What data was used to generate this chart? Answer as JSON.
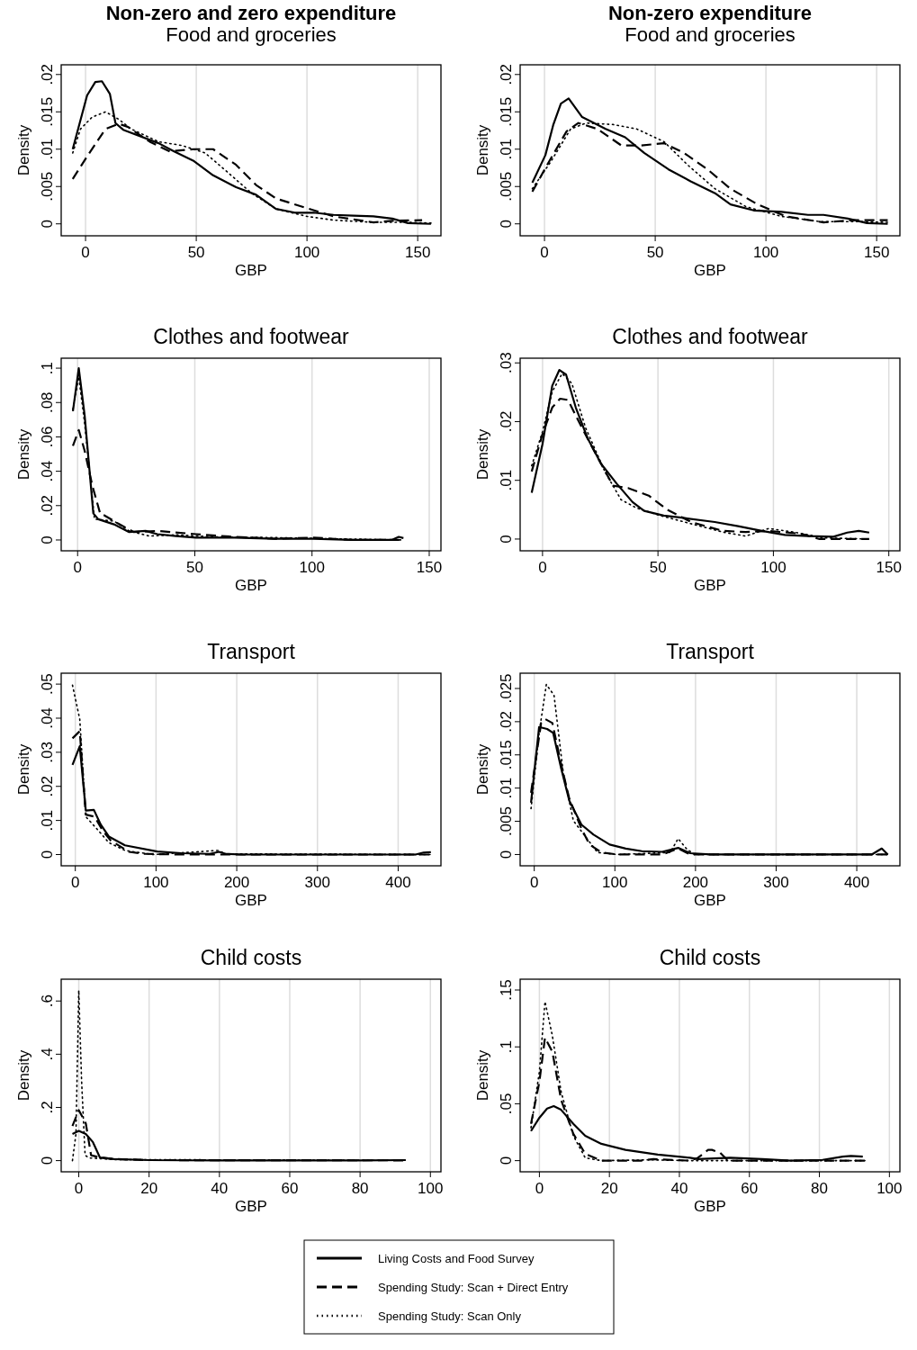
{
  "chart_data": [
    {
      "type": "line",
      "title": "Non-zero and zero expenditure",
      "subtitle": "Food and groceries",
      "xlabel": "GBP",
      "ylabel": "Density",
      "xlim": [
        -11,
        160.5
      ],
      "ylim": [
        -0.0016,
        0.0213
      ],
      "xticks": [
        0,
        50,
        100,
        150
      ],
      "yticks": [
        {
          "value": 0,
          "label": "0"
        },
        {
          "value": 0.005,
          "label": ".005"
        },
        {
          "value": 0.01,
          "label": ".01"
        },
        {
          "value": 0.015,
          "label": ".015"
        },
        {
          "value": 0.02,
          "label": ".02"
        }
      ],
      "grid": "x",
      "series": [
        {
          "color": "#000000",
          "line_style": "solid",
          "x": [
            -5.8,
            0.7,
            4.4,
            7.4,
            11,
            13.5,
            17,
            33,
            40,
            49,
            57.6,
            68,
            77,
            86,
            94.5,
            103,
            112,
            121,
            130,
            138.5,
            145.6,
            156
          ],
          "values": [
            0.01,
            0.0172,
            0.019,
            0.0191,
            0.0174,
            0.0135,
            0.0126,
            0.0108,
            0.0097,
            0.0084,
            0.0065,
            0.0049,
            0.0039,
            0.002,
            0.0015,
            0.0015,
            0.0012,
            0.0011,
            0.001,
            0.0007,
            0.0001,
            0
          ]
        },
        {
          "color": "#000000",
          "line_style": "dashed",
          "x": [
            -5.8,
            0.4,
            9,
            15,
            19,
            29,
            38,
            49,
            57.6,
            68,
            77,
            86,
            100,
            112,
            130,
            138.5,
            152
          ],
          "values": [
            0.006,
            0.0089,
            0.0127,
            0.0134,
            0.013,
            0.011,
            0.0097,
            0.01,
            0.01,
            0.0079,
            0.0052,
            0.0034,
            0.0021,
            0.001,
            0.0002,
            0.0004,
            0.0005
          ]
        },
        {
          "color": "#000000",
          "line_style": "dotted",
          "x": [
            -5.8,
            -2.3,
            3,
            9,
            15,
            20.6,
            33,
            43.5,
            54,
            64.6,
            75,
            86,
            100,
            112,
            130,
            147,
            156
          ],
          "values": [
            0.0095,
            0.0127,
            0.0143,
            0.015,
            0.014,
            0.0127,
            0.011,
            0.0105,
            0.0095,
            0.0068,
            0.0041,
            0.002,
            0.001,
            0.0005,
            0.0002,
            0.0002,
            0.0001
          ]
        }
      ]
    },
    {
      "type": "line",
      "title": "Non-zero expenditure",
      "subtitle": "Food and groceries",
      "xlabel": "GBP",
      "ylabel": "Density",
      "xlim": [
        -11,
        160.5
      ],
      "ylim": [
        -0.0016,
        0.0213
      ],
      "xticks": [
        0,
        50,
        100,
        150
      ],
      "yticks": [
        {
          "value": 0,
          "label": "0"
        },
        {
          "value": 0.005,
          "label": ".005"
        },
        {
          "value": 0.01,
          "label": ".01"
        },
        {
          "value": 0.015,
          "label": ".015"
        },
        {
          "value": 0.02,
          "label": ".02"
        }
      ],
      "grid": "x",
      "series": [
        {
          "color": "#000000",
          "line_style": "solid",
          "x": [
            -5.5,
            0.4,
            3.9,
            7.4,
            10.9,
            17,
            27.6,
            36.4,
            45,
            56,
            66,
            77,
            84,
            94.5,
            107,
            119,
            126,
            137,
            145.6,
            155
          ],
          "values": [
            0.0055,
            0.0092,
            0.0132,
            0.0161,
            0.0168,
            0.0143,
            0.0127,
            0.0116,
            0.0095,
            0.0073,
            0.0057,
            0.0041,
            0.0026,
            0.0018,
            0.0016,
            0.0012,
            0.0012,
            0.0007,
            0.0001,
            0
          ]
        },
        {
          "color": "#000000",
          "line_style": "dashed",
          "x": [
            -5.5,
            1.2,
            10,
            15.3,
            24,
            34.7,
            43.5,
            54,
            63,
            73.6,
            84,
            96.3,
            109,
            126,
            140,
            155
          ],
          "values": [
            0.0043,
            0.0079,
            0.0124,
            0.0135,
            0.0127,
            0.0105,
            0.0105,
            0.0108,
            0.0095,
            0.0073,
            0.0047,
            0.0026,
            0.001,
            0.0002,
            0.0005,
            0.0005
          ]
        },
        {
          "color": "#000000",
          "line_style": "dotted",
          "x": [
            -5.5,
            3,
            11.8,
            18.8,
            31,
            41.7,
            54,
            64.6,
            77,
            91,
            107,
            124.5,
            142,
            155
          ],
          "values": [
            0.0047,
            0.0084,
            0.0127,
            0.0135,
            0.0133,
            0.0127,
            0.011,
            0.0079,
            0.0047,
            0.0023,
            0.001,
            0.0003,
            0.0003,
            0.0002
          ]
        }
      ]
    },
    {
      "type": "line",
      "title": "Clothes and footwear",
      "xlabel": "GBP",
      "ylabel": "Density",
      "xlim": [
        -7,
        155
      ],
      "ylim": [
        -0.0063,
        0.1058
      ],
      "xticks": [
        0,
        50,
        100,
        150
      ],
      "yticks": [
        {
          "value": 0,
          "label": "0"
        },
        {
          "value": 0.02,
          "label": ".02"
        },
        {
          "value": 0.04,
          "label": ".04"
        },
        {
          "value": 0.06,
          "label": ".06"
        },
        {
          "value": 0.08,
          "label": ".08"
        },
        {
          "value": 0.1,
          "label": ".1"
        }
      ],
      "grid": "x",
      "series": [
        {
          "color": "#000000",
          "line_style": "solid",
          "x": [
            -2,
            0.5,
            3,
            6.7,
            8.8,
            15.5,
            22,
            29,
            34,
            42,
            50.5,
            67,
            84,
            100.5,
            117,
            134,
            137,
            139
          ],
          "values": [
            0.075,
            0.1,
            0.0726,
            0.0155,
            0.0121,
            0.0091,
            0.0046,
            0.0053,
            0.0034,
            0.0023,
            0.0014,
            0.0014,
            0.0007,
            0.0007,
            0,
            0,
            0.0018,
            0.0011
          ]
        },
        {
          "color": "#000000",
          "line_style": "dashed",
          "x": [
            -2,
            0.5,
            3,
            6.3,
            9.7,
            11.3,
            17,
            24,
            34,
            50.5,
            67,
            84,
            100.5,
            117,
            139
          ],
          "values": [
            0.0548,
            0.064,
            0.052,
            0.0315,
            0.0151,
            0.0144,
            0.0098,
            0.0046,
            0.0053,
            0.0034,
            0.0018,
            0.0007,
            0.0014,
            0,
            0
          ]
        },
        {
          "color": "#000000",
          "line_style": "dotted",
          "x": [
            -2,
            0.5,
            3,
            7.2,
            15.5,
            22,
            30.5,
            42,
            59,
            84,
            109,
            139
          ],
          "values": [
            0.076,
            0.095,
            0.068,
            0.0121,
            0.011,
            0.0053,
            0.0023,
            0.003,
            0.0018,
            0.0014,
            0.0007,
            0
          ]
        }
      ]
    },
    {
      "type": "line",
      "title": "Clothes and footwear",
      "xlabel": "GBP",
      "ylabel": "Density",
      "xlim": [
        -9.7,
        154.8
      ],
      "ylim": [
        -0.002,
        0.0308
      ],
      "xticks": [
        0,
        50,
        100,
        150
      ],
      "yticks": [
        {
          "value": 0,
          "label": "0"
        },
        {
          "value": 0.01,
          "label": ".01"
        },
        {
          "value": 0.02,
          "label": ".02"
        },
        {
          "value": 0.03,
          "label": ".03"
        }
      ],
      "grid": "x",
      "series": [
        {
          "color": "#000000",
          "line_style": "solid",
          "x": [
            -4.7,
            0,
            4.2,
            7.3,
            10.2,
            14.4,
            19.5,
            25.4,
            32.2,
            39,
            44,
            52.5,
            61,
            74.6,
            84.7,
            95,
            105,
            115,
            126,
            132,
            137,
            141.5
          ],
          "values": [
            0.0079,
            0.0162,
            0.0261,
            0.0288,
            0.028,
            0.0224,
            0.0172,
            0.0128,
            0.0094,
            0.0063,
            0.0048,
            0.004,
            0.0036,
            0.0029,
            0.0022,
            0.0014,
            0.0007,
            0.0005,
            0.0004,
            0.0011,
            0.0014,
            0.0011
          ]
        },
        {
          "color": "#000000",
          "line_style": "dashed",
          "x": [
            -4.7,
            0,
            4.2,
            7.6,
            11,
            17,
            25.4,
            30.5,
            37,
            46,
            54,
            64.4,
            78,
            88,
            98,
            112,
            120,
            141.5
          ],
          "values": [
            0.0115,
            0.0179,
            0.0224,
            0.0239,
            0.0237,
            0.019,
            0.0128,
            0.0091,
            0.0087,
            0.0074,
            0.005,
            0.0029,
            0.0014,
            0.0012,
            0.0014,
            0.0009,
            0,
            0
          ]
        },
        {
          "color": "#000000",
          "line_style": "dotted",
          "x": [
            -4.7,
            0,
            4.2,
            8.5,
            12.7,
            18.6,
            27,
            34,
            40.7,
            51,
            64.4,
            78,
            88,
            98,
            108.5,
            122,
            141.5
          ],
          "values": [
            0.0125,
            0.0183,
            0.0251,
            0.0282,
            0.0265,
            0.019,
            0.0115,
            0.0067,
            0.0053,
            0.004,
            0.0026,
            0.0012,
            0.0005,
            0.0018,
            0.0012,
            0.0002,
            0
          ]
        }
      ]
    },
    {
      "type": "line",
      "title": "Transport",
      "xlabel": "GBP",
      "ylabel": "Density",
      "xlim": [
        -17.5,
        453
      ],
      "ylim": [
        -0.0033,
        0.0532
      ],
      "xticks": [
        0,
        100,
        200,
        300,
        400
      ],
      "yticks": [
        {
          "value": 0,
          "label": "0"
        },
        {
          "value": 0.01,
          "label": ".01"
        },
        {
          "value": 0.02,
          "label": ".02"
        },
        {
          "value": 0.03,
          "label": ".03"
        },
        {
          "value": 0.04,
          "label": ".04"
        },
        {
          "value": 0.05,
          "label": ".05"
        }
      ],
      "grid": "x",
      "series": [
        {
          "color": "#000000",
          "line_style": "solid",
          "x": [
            -3.5,
            5.5,
            13,
            23,
            31.5,
            41.5,
            61.5,
            101.5,
            131.5,
            166.5,
            178,
            186.5,
            206.5,
            421.5,
            431.5,
            440.5
          ],
          "values": [
            0.0263,
            0.0318,
            0.0129,
            0.0131,
            0.0088,
            0.0053,
            0.0027,
            0.0009,
            0.0004,
            0.0002,
            0.0008,
            0.0002,
            0,
            0,
            0.0006,
            0.0007
          ]
        },
        {
          "color": "#000000",
          "line_style": "dashed",
          "x": [
            -3.5,
            5.5,
            13,
            24,
            34,
            44,
            66.5,
            86.5,
            131.5,
            440.5
          ],
          "values": [
            0.0341,
            0.0362,
            0.0117,
            0.0111,
            0.007,
            0.0041,
            0.0008,
            0.0002,
            0,
            0
          ]
        },
        {
          "color": "#000000",
          "line_style": "dotted",
          "x": [
            -3.5,
            5.5,
            13,
            26.5,
            41.5,
            61.5,
            96.5,
            176.5,
            186.5,
            440.5
          ],
          "values": [
            0.0497,
            0.0397,
            0.0111,
            0.0076,
            0.0035,
            0.0012,
            0,
            0.0012,
            0.0002,
            0
          ]
        }
      ]
    },
    {
      "type": "line",
      "title": "Transport",
      "xlabel": "GBP",
      "ylabel": "Density",
      "xlim": [
        -17.5,
        453.5
      ],
      "ylim": [
        -0.0017,
        0.0273
      ],
      "xticks": [
        0,
        100,
        200,
        300,
        400
      ],
      "yticks": [
        {
          "value": 0,
          "label": "0"
        },
        {
          "value": 0.005,
          "label": ".005"
        },
        {
          "value": 0.01,
          "label": ".01"
        },
        {
          "value": 0.015,
          "label": ".015"
        },
        {
          "value": 0.02,
          "label": ".02"
        },
        {
          "value": 0.025,
          "label": ".025"
        }
      ],
      "grid": "x",
      "series": [
        {
          "color": "#000000",
          "line_style": "solid",
          "x": [
            -4,
            6,
            16,
            23.5,
            33.5,
            43.5,
            58.5,
            73.5,
            93.5,
            113.5,
            133.5,
            158.5,
            178.5,
            193.5,
            218.5,
            418.5,
            431,
            438.5
          ],
          "values": [
            0.0078,
            0.0192,
            0.0189,
            0.0183,
            0.0129,
            0.0081,
            0.0045,
            0.003,
            0.0015,
            0.0009,
            0.0005,
            0.0004,
            0.001,
            0.0002,
            0,
            0,
            0.0009,
            0
          ]
        },
        {
          "color": "#000000",
          "line_style": "dashed",
          "x": [
            -4,
            8.5,
            13.5,
            22.5,
            33.5,
            43.5,
            58.5,
            68.5,
            83.5,
            103.5,
            158.5,
            178.5,
            193.5,
            438.5
          ],
          "values": [
            0.0093,
            0.0198,
            0.0204,
            0.0198,
            0.0135,
            0.0084,
            0.0039,
            0.0015,
            0.0003,
            0,
            0,
            0.0009,
            0,
            0
          ]
        },
        {
          "color": "#000000",
          "line_style": "dotted",
          "x": [
            -4,
            6,
            15,
            24.5,
            36,
            48.5,
            63.5,
            78.5,
            103.5,
            168.5,
            178.5,
            188.5,
            198.5,
            438.5
          ],
          "values": [
            0.0069,
            0.0183,
            0.0256,
            0.024,
            0.0123,
            0.0051,
            0.0027,
            0.0003,
            0,
            0.0003,
            0.0024,
            0.0009,
            0,
            0
          ]
        }
      ]
    },
    {
      "type": "line",
      "title": "Child costs",
      "xlabel": "GBP",
      "ylabel": "Density",
      "xlim": [
        -5,
        103
      ],
      "ylim": [
        -0.042,
        0.682
      ],
      "xticks": [
        0,
        20,
        40,
        60,
        80,
        100
      ],
      "yticks": [
        {
          "value": 0,
          "label": "0"
        },
        {
          "value": 0.2,
          "label": ".2"
        },
        {
          "value": 0.4,
          "label": ".4"
        },
        {
          "value": 0.6,
          "label": ".6"
        }
      ],
      "grid": "x",
      "series": [
        {
          "color": "#000000",
          "line_style": "solid",
          "x": [
            -1.8,
            0,
            2,
            4,
            6,
            10,
            20,
            40,
            60,
            80,
            93
          ],
          "values": [
            0.1,
            0.112,
            0.1,
            0.07,
            0.012,
            0.006,
            0.002,
            0.001,
            0.001,
            0.001,
            0.002
          ]
        },
        {
          "color": "#000000",
          "line_style": "dashed",
          "x": [
            -1.8,
            0,
            2,
            3.5,
            6,
            10,
            20,
            93
          ],
          "values": [
            0.13,
            0.19,
            0.14,
            0.02,
            0.012,
            0.006,
            0.002,
            0.001
          ]
        },
        {
          "color": "#000000",
          "line_style": "dotted",
          "x": [
            -1.8,
            -0.8,
            0,
            0.8,
            1.8,
            3,
            10,
            93
          ],
          "values": [
            0,
            0.1,
            0.64,
            0.3,
            0.02,
            0.01,
            0.004,
            0.001
          ]
        }
      ]
    },
    {
      "type": "line",
      "title": "Child costs",
      "xlabel": "GBP",
      "ylabel": "Density",
      "xlim": [
        -5.5,
        103
      ],
      "ylim": [
        -0.0098,
        0.1595
      ],
      "xticks": [
        0,
        20,
        40,
        60,
        80,
        100
      ],
      "yticks": [
        {
          "value": 0,
          "label": "0"
        },
        {
          "value": 0.05,
          "label": ".05"
        },
        {
          "value": 0.1,
          "label": ".1"
        },
        {
          "value": 0.15,
          "label": ".15"
        }
      ],
      "grid": "x",
      "legend": "bottom",
      "series": [
        {
          "name": "Living Costs and Food Survey",
          "color": "#000000",
          "line_style": "solid",
          "x": [
            -2.4,
            0,
            2.2,
            4.1,
            6.2,
            9.7,
            13.1,
            17.7,
            24.6,
            33.8,
            43,
            45.3,
            54.5,
            63.7,
            71.7,
            80.9,
            86.7,
            89,
            92.4
          ],
          "values": [
            0.026,
            0.0377,
            0.0458,
            0.0479,
            0.0447,
            0.0324,
            0.0218,
            0.0148,
            0.0095,
            0.0053,
            0.0025,
            0.0014,
            0.0025,
            0.0014,
            0,
            0.0007,
            0.0035,
            0.0042,
            0.0035
          ]
        },
        {
          "name": "Spending Study: Scan + Direct Entry",
          "color": "#000000",
          "line_style": "dashed",
          "x": [
            -2.4,
            0,
            1.6,
            3.7,
            6.2,
            9.7,
            13.1,
            17.7,
            29,
            32.6,
            43,
            45.3,
            48.2,
            49.3,
            51.6,
            53.9,
            93
          ],
          "values": [
            0.0324,
            0.0694,
            0.1081,
            0.0958,
            0.0535,
            0.0236,
            0.006,
            0,
            0,
            0.0014,
            0,
            0.0025,
            0.0095,
            0.0095,
            0.007,
            0,
            0
          ]
        },
        {
          "name": "Spending Study: Scan Only",
          "color": "#000000",
          "line_style": "dotted",
          "x": [
            -2.4,
            0,
            1.6,
            3.7,
            6.2,
            9.7,
            13.1,
            17.7,
            31.5,
            43,
            93
          ],
          "values": [
            0.0289,
            0.0782,
            0.1398,
            0.1099,
            0.0606,
            0.0218,
            0.0025,
            0,
            0.0007,
            0,
            0
          ]
        }
      ]
    }
  ]
}
